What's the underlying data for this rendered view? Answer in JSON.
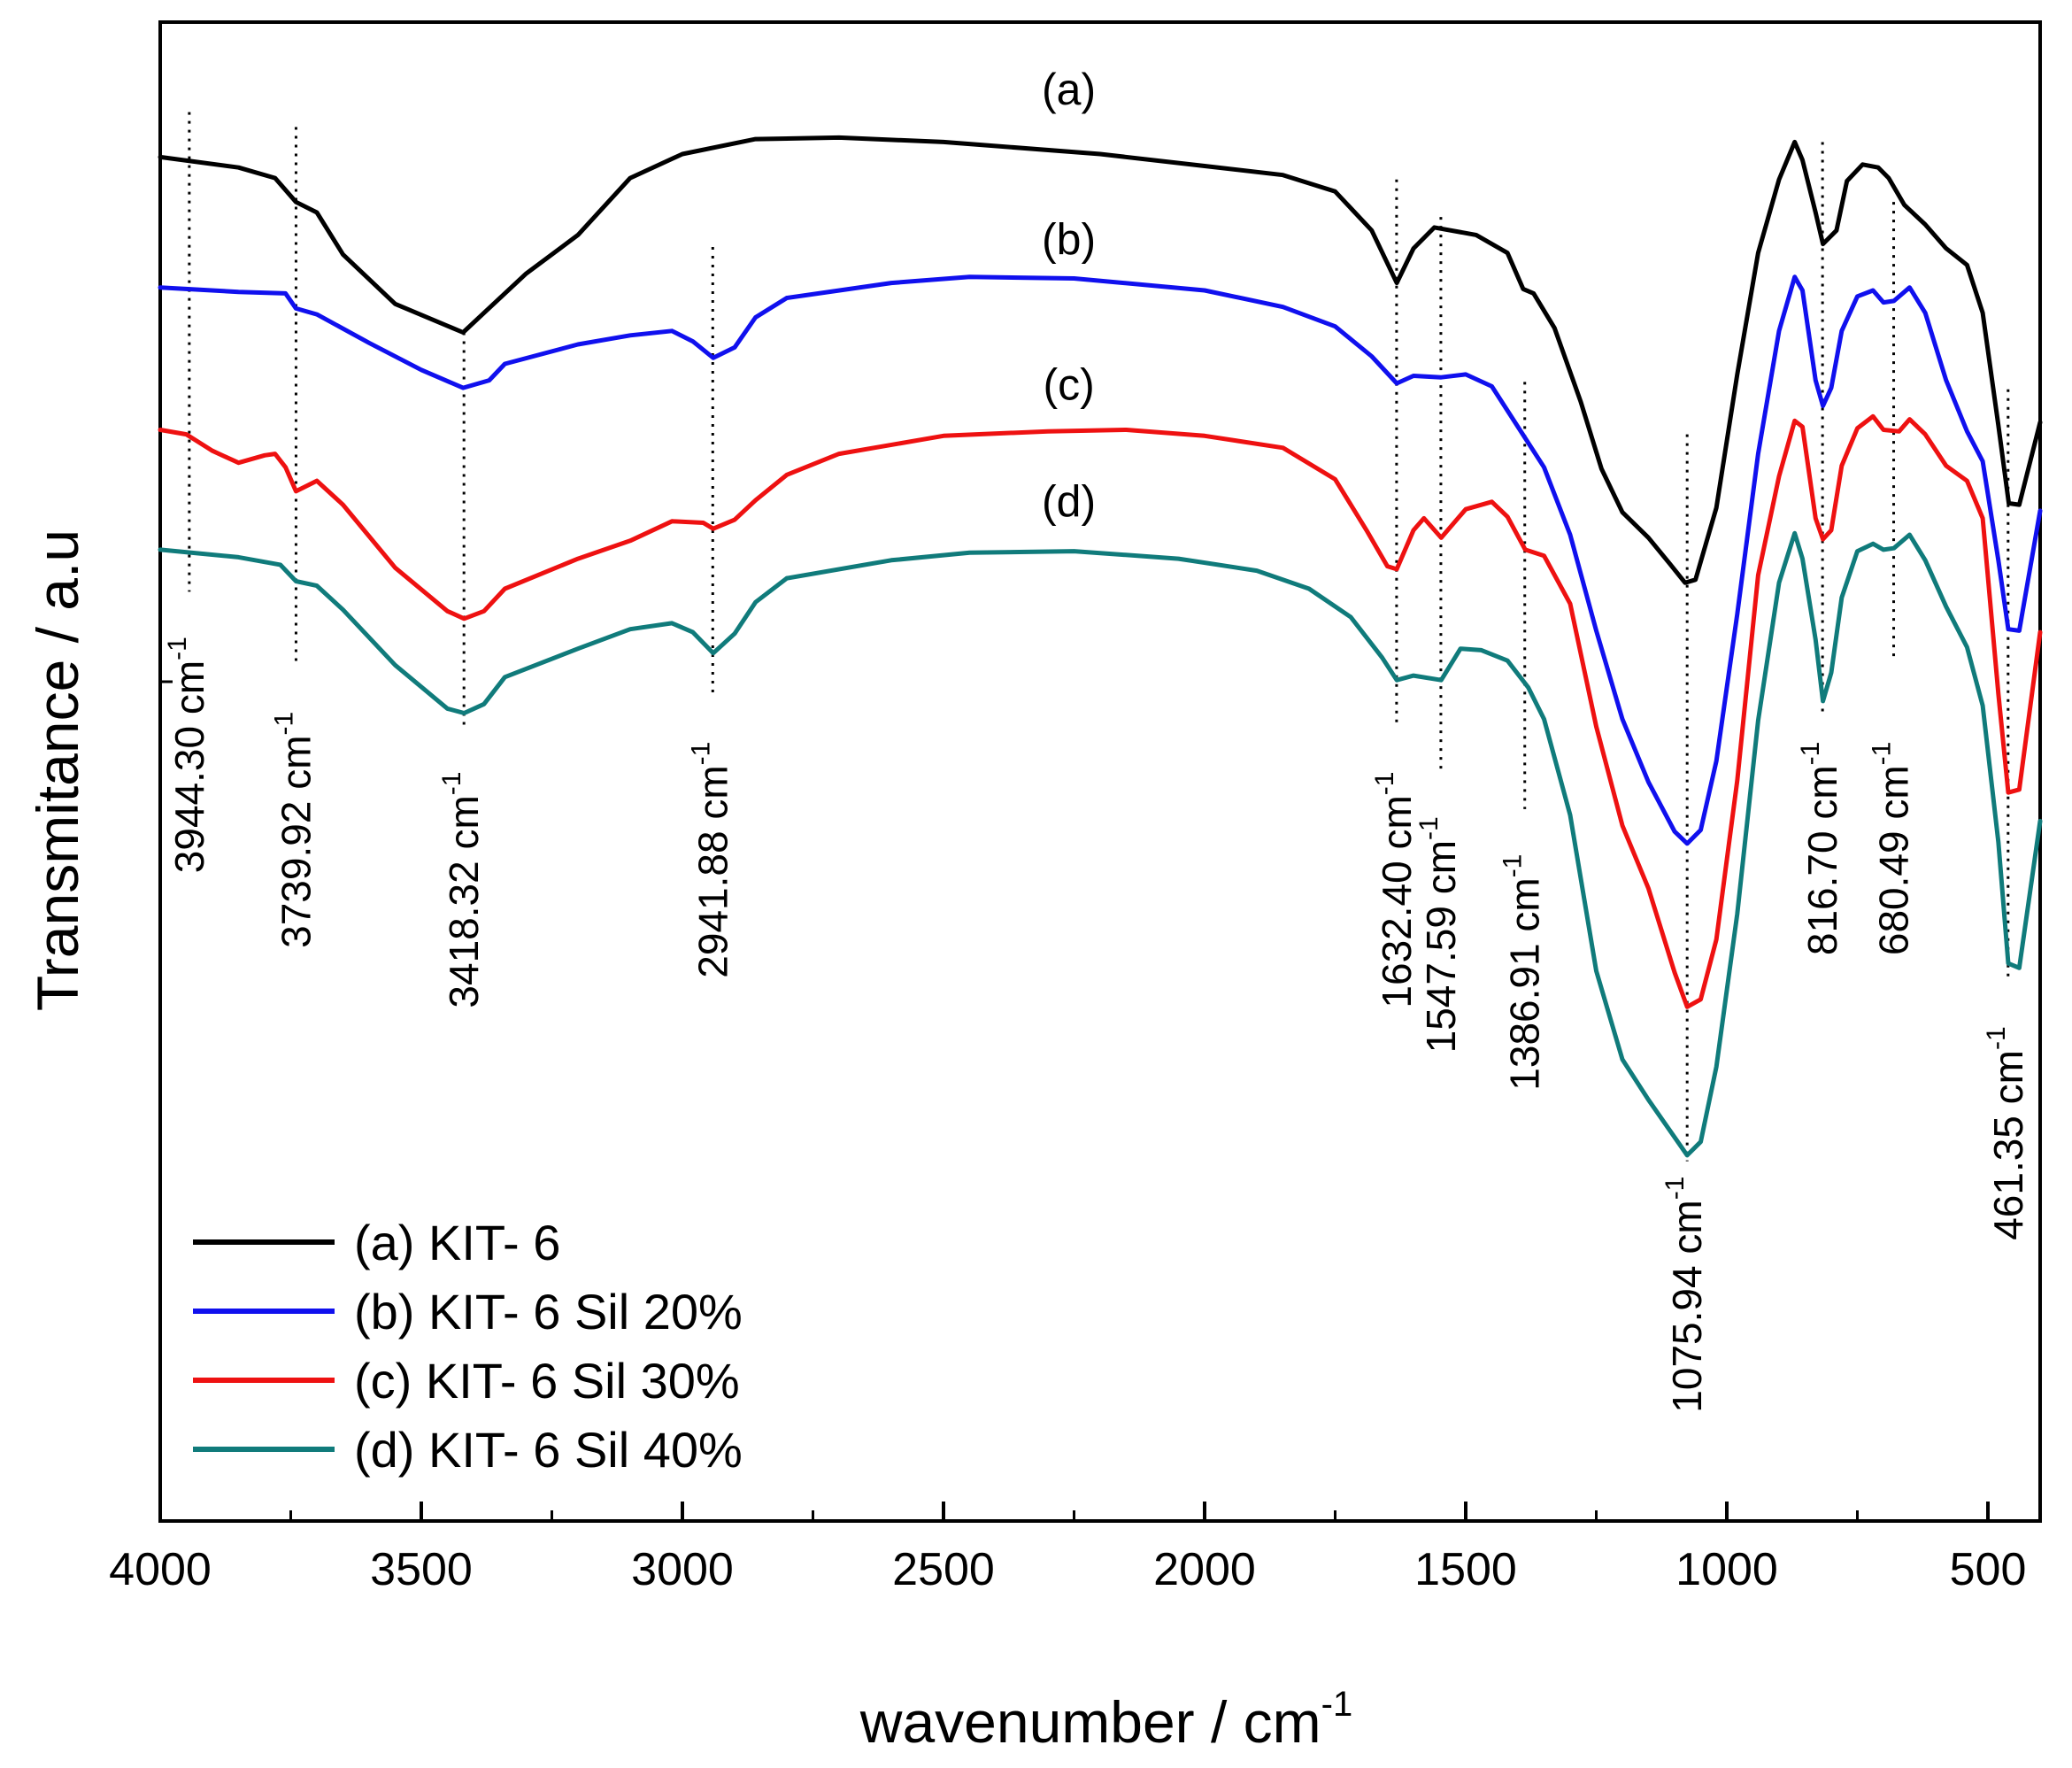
{
  "chart_data": {
    "type": "line",
    "xlabel": "wavenumber / cm",
    "xlabel_sup": "-1",
    "ylabel": "Transmitance / a.u",
    "xlim": [
      4000,
      400
    ],
    "ylim": [
      0,
      100
    ],
    "x_ticks": [
      {
        "value": 4000,
        "label": "4000"
      },
      {
        "value": 3500,
        "label": "3500"
      },
      {
        "value": 3000,
        "label": "3000"
      },
      {
        "value": 2500,
        "label": "2500"
      },
      {
        "value": 2000,
        "label": "2000"
      },
      {
        "value": 1500,
        "label": "1500"
      },
      {
        "value": 1000,
        "label": "1000"
      },
      {
        "value": 500,
        "label": "500"
      }
    ],
    "series": [
      {
        "name": "(a) KIT- 6",
        "tag": "(a)",
        "color": "#000000",
        "points": [
          [
            4000,
            91.0
          ],
          [
            3850,
            90.3
          ],
          [
            3780,
            89.6
          ],
          [
            3740,
            88.0
          ],
          [
            3700,
            87.3
          ],
          [
            3650,
            84.5
          ],
          [
            3550,
            81.2
          ],
          [
            3420,
            79.3
          ],
          [
            3380,
            80.6
          ],
          [
            3300,
            83.2
          ],
          [
            3200,
            85.8
          ],
          [
            3100,
            89.6
          ],
          [
            3000,
            91.2
          ],
          [
            2860,
            92.2
          ],
          [
            2700,
            92.3
          ],
          [
            2500,
            92.0
          ],
          [
            2200,
            91.2
          ],
          [
            2000,
            90.4
          ],
          [
            1850,
            89.8
          ],
          [
            1750,
            88.7
          ],
          [
            1680,
            86.1
          ],
          [
            1632,
            82.6
          ],
          [
            1600,
            84.9
          ],
          [
            1560,
            86.3
          ],
          [
            1480,
            85.8
          ],
          [
            1420,
            84.6
          ],
          [
            1390,
            82.2
          ],
          [
            1370,
            81.9
          ],
          [
            1330,
            79.6
          ],
          [
            1280,
            74.7
          ],
          [
            1240,
            70.2
          ],
          [
            1200,
            67.3
          ],
          [
            1150,
            65.6
          ],
          [
            1110,
            63.9
          ],
          [
            1080,
            62.6
          ],
          [
            1060,
            62.8
          ],
          [
            1020,
            67.6
          ],
          [
            980,
            76.5
          ],
          [
            940,
            84.6
          ],
          [
            900,
            89.5
          ],
          [
            870,
            92.0
          ],
          [
            855,
            90.8
          ],
          [
            830,
            87.3
          ],
          [
            816,
            85.2
          ],
          [
            790,
            86.1
          ],
          [
            770,
            89.4
          ],
          [
            740,
            90.5
          ],
          [
            710,
            90.3
          ],
          [
            690,
            89.6
          ],
          [
            660,
            87.8
          ],
          [
            620,
            86.5
          ],
          [
            580,
            84.9
          ],
          [
            540,
            83.8
          ],
          [
            510,
            80.6
          ],
          [
            480,
            73.1
          ],
          [
            460,
            67.9
          ],
          [
            440,
            67.8
          ],
          [
            400,
            73.3
          ]
        ]
      },
      {
        "name": "(b) KIT- 6 Sil 20%",
        "tag": "(b)",
        "color": "#1010ee",
        "points": [
          [
            4000,
            82.3
          ],
          [
            3850,
            82.0
          ],
          [
            3760,
            81.9
          ],
          [
            3740,
            80.9
          ],
          [
            3700,
            80.5
          ],
          [
            3600,
            78.6
          ],
          [
            3500,
            76.8
          ],
          [
            3420,
            75.6
          ],
          [
            3370,
            76.1
          ],
          [
            3340,
            77.2
          ],
          [
            3200,
            78.5
          ],
          [
            3100,
            79.1
          ],
          [
            3020,
            79.4
          ],
          [
            2980,
            78.7
          ],
          [
            2941,
            77.6
          ],
          [
            2900,
            78.3
          ],
          [
            2860,
            80.3
          ],
          [
            2800,
            81.6
          ],
          [
            2600,
            82.6
          ],
          [
            2450,
            83.0
          ],
          [
            2250,
            82.9
          ],
          [
            2000,
            82.1
          ],
          [
            1850,
            81.0
          ],
          [
            1750,
            79.7
          ],
          [
            1680,
            77.7
          ],
          [
            1632,
            75.9
          ],
          [
            1600,
            76.4
          ],
          [
            1547,
            76.3
          ],
          [
            1500,
            76.5
          ],
          [
            1450,
            75.7
          ],
          [
            1400,
            73.0
          ],
          [
            1350,
            70.3
          ],
          [
            1300,
            65.8
          ],
          [
            1250,
            59.4
          ],
          [
            1200,
            53.5
          ],
          [
            1150,
            49.3
          ],
          [
            1100,
            46.0
          ],
          [
            1076,
            45.2
          ],
          [
            1050,
            46.1
          ],
          [
            1020,
            50.7
          ],
          [
            980,
            60.5
          ],
          [
            940,
            71.2
          ],
          [
            900,
            79.4
          ],
          [
            870,
            83.0
          ],
          [
            855,
            82.1
          ],
          [
            830,
            76.1
          ],
          [
            816,
            74.4
          ],
          [
            800,
            75.6
          ],
          [
            780,
            79.4
          ],
          [
            750,
            81.7
          ],
          [
            720,
            82.1
          ],
          [
            700,
            81.3
          ],
          [
            680,
            81.4
          ],
          [
            650,
            82.3
          ],
          [
            620,
            80.6
          ],
          [
            580,
            76.1
          ],
          [
            540,
            72.7
          ],
          [
            510,
            70.7
          ],
          [
            480,
            64.1
          ],
          [
            461,
            59.5
          ],
          [
            440,
            59.4
          ],
          [
            400,
            67.4
          ]
        ]
      },
      {
        "name": "(c) KIT- 6 Sil 30%",
        "tag": "(c)",
        "color": "#ee1111",
        "points": [
          [
            4000,
            72.8
          ],
          [
            3950,
            72.5
          ],
          [
            3900,
            71.4
          ],
          [
            3850,
            70.6
          ],
          [
            3800,
            71.1
          ],
          [
            3780,
            71.2
          ],
          [
            3760,
            70.3
          ],
          [
            3740,
            68.7
          ],
          [
            3700,
            69.4
          ],
          [
            3650,
            67.8
          ],
          [
            3550,
            63.6
          ],
          [
            3450,
            60.7
          ],
          [
            3418,
            60.2
          ],
          [
            3380,
            60.7
          ],
          [
            3340,
            62.2
          ],
          [
            3200,
            64.2
          ],
          [
            3100,
            65.4
          ],
          [
            3020,
            66.7
          ],
          [
            2960,
            66.6
          ],
          [
            2941,
            66.2
          ],
          [
            2900,
            66.8
          ],
          [
            2860,
            68.1
          ],
          [
            2800,
            69.8
          ],
          [
            2700,
            71.2
          ],
          [
            2500,
            72.4
          ],
          [
            2300,
            72.7
          ],
          [
            2150,
            72.8
          ],
          [
            2000,
            72.4
          ],
          [
            1850,
            71.6
          ],
          [
            1750,
            69.5
          ],
          [
            1690,
            66.1
          ],
          [
            1650,
            63.7
          ],
          [
            1632,
            63.5
          ],
          [
            1600,
            66.1
          ],
          [
            1580,
            66.9
          ],
          [
            1547,
            65.6
          ],
          [
            1500,
            67.5
          ],
          [
            1450,
            68.0
          ],
          [
            1420,
            67.0
          ],
          [
            1386,
            64.8
          ],
          [
            1350,
            64.4
          ],
          [
            1300,
            61.2
          ],
          [
            1250,
            53.0
          ],
          [
            1200,
            46.4
          ],
          [
            1150,
            42.2
          ],
          [
            1100,
            36.6
          ],
          [
            1076,
            34.3
          ],
          [
            1050,
            34.8
          ],
          [
            1020,
            38.8
          ],
          [
            980,
            49.4
          ],
          [
            940,
            63.1
          ],
          [
            900,
            69.7
          ],
          [
            870,
            73.4
          ],
          [
            855,
            73.0
          ],
          [
            830,
            66.9
          ],
          [
            816,
            65.5
          ],
          [
            800,
            66.1
          ],
          [
            780,
            70.4
          ],
          [
            750,
            72.9
          ],
          [
            720,
            73.7
          ],
          [
            700,
            72.8
          ],
          [
            670,
            72.7
          ],
          [
            650,
            73.5
          ],
          [
            620,
            72.5
          ],
          [
            580,
            70.4
          ],
          [
            540,
            69.4
          ],
          [
            510,
            66.9
          ],
          [
            480,
            55.2
          ],
          [
            461,
            48.6
          ],
          [
            440,
            48.8
          ],
          [
            400,
            59.3
          ]
        ]
      },
      {
        "name": "(d) KIT- 6 Sil 40%",
        "tag": "(d)",
        "color": "#107b7b",
        "points": [
          [
            4000,
            64.8
          ],
          [
            3850,
            64.3
          ],
          [
            3770,
            63.8
          ],
          [
            3740,
            62.7
          ],
          [
            3700,
            62.4
          ],
          [
            3650,
            60.8
          ],
          [
            3550,
            57.1
          ],
          [
            3450,
            54.2
          ],
          [
            3418,
            53.9
          ],
          [
            3380,
            54.5
          ],
          [
            3340,
            56.3
          ],
          [
            3200,
            58.2
          ],
          [
            3100,
            59.5
          ],
          [
            3020,
            59.9
          ],
          [
            2980,
            59.3
          ],
          [
            2941,
            57.9
          ],
          [
            2900,
            59.2
          ],
          [
            2860,
            61.3
          ],
          [
            2800,
            62.9
          ],
          [
            2600,
            64.1
          ],
          [
            2450,
            64.6
          ],
          [
            2250,
            64.7
          ],
          [
            2050,
            64.2
          ],
          [
            1900,
            63.4
          ],
          [
            1800,
            62.2
          ],
          [
            1720,
            60.3
          ],
          [
            1660,
            57.6
          ],
          [
            1632,
            56.1
          ],
          [
            1600,
            56.4
          ],
          [
            1547,
            56.1
          ],
          [
            1510,
            58.2
          ],
          [
            1470,
            58.1
          ],
          [
            1420,
            57.4
          ],
          [
            1380,
            55.6
          ],
          [
            1350,
            53.5
          ],
          [
            1300,
            47.1
          ],
          [
            1250,
            36.7
          ],
          [
            1200,
            30.8
          ],
          [
            1150,
            28.1
          ],
          [
            1100,
            25.6
          ],
          [
            1076,
            24.4
          ],
          [
            1050,
            25.3
          ],
          [
            1020,
            30.3
          ],
          [
            980,
            40.5
          ],
          [
            940,
            53.4
          ],
          [
            900,
            62.6
          ],
          [
            870,
            65.9
          ],
          [
            855,
            64.2
          ],
          [
            830,
            58.8
          ],
          [
            816,
            54.7
          ],
          [
            800,
            56.6
          ],
          [
            780,
            61.6
          ],
          [
            750,
            64.7
          ],
          [
            720,
            65.2
          ],
          [
            700,
            64.8
          ],
          [
            680,
            64.9
          ],
          [
            650,
            65.8
          ],
          [
            620,
            64.1
          ],
          [
            580,
            61.0
          ],
          [
            540,
            58.3
          ],
          [
            510,
            54.4
          ],
          [
            480,
            45.3
          ],
          [
            461,
            37.2
          ],
          [
            440,
            36.9
          ],
          [
            400,
            46.7
          ]
        ]
      }
    ],
    "annotations": [
      {
        "label": "3944.30 cm",
        "value": 3944.3,
        "y_top": 94.0,
        "y_bottom": 62.0,
        "text_y": 59.0
      },
      {
        "label": "3739.92 cm",
        "value": 3739.92,
        "y_top": 93.0,
        "y_bottom": 57.0,
        "text_y": 54.0
      },
      {
        "label": "3418.32 cm",
        "value": 3418.32,
        "y_top": 79.3,
        "y_bottom": 53.0,
        "text_y": 50.0
      },
      {
        "label": "2941.88 cm",
        "value": 2941.88,
        "y_top": 85.0,
        "y_bottom": 55.0,
        "text_y": 52.0
      },
      {
        "label": "1632.40 cm",
        "value": 1632.4,
        "y_top": 89.5,
        "y_bottom": 53.0,
        "text_y": 50.0
      },
      {
        "label": "1547.59 cm",
        "value": 1547.59,
        "y_top": 87.0,
        "y_bottom": 50.0,
        "text_y": 47.0
      },
      {
        "label": "1386.91 cm",
        "value": 1386.91,
        "y_top": 76.0,
        "y_bottom": 47.5,
        "text_y": 44.5
      },
      {
        "label": "1075.94 cm",
        "value": 1075.94,
        "y_top": 72.5,
        "y_bottom": 24.0,
        "text_y": 23.0
      },
      {
        "label": "816.70 cm",
        "value": 816.7,
        "y_top": 92.0,
        "y_bottom": 54.0,
        "text_y": 52.0
      },
      {
        "label": "680.49 cm",
        "value": 680.49,
        "y_top": 88.0,
        "y_bottom": 57.5,
        "text_y": 52.0
      },
      {
        "label": "461.35 cm",
        "value": 461.35,
        "y_top": 75.5,
        "y_bottom": 36.0,
        "text_y": 33.0
      }
    ],
    "annotation_sup": "-1",
    "curve_labels": [
      {
        "text": "(a)",
        "x": 2260,
        "y": 94.5
      },
      {
        "text": "(b)",
        "x": 2260,
        "y": 84.5
      },
      {
        "text": "(c)",
        "x": 2260,
        "y": 74.8
      },
      {
        "text": "(d)",
        "x": 2260,
        "y": 67.0
      }
    ],
    "legend_position": "bottom-left"
  }
}
